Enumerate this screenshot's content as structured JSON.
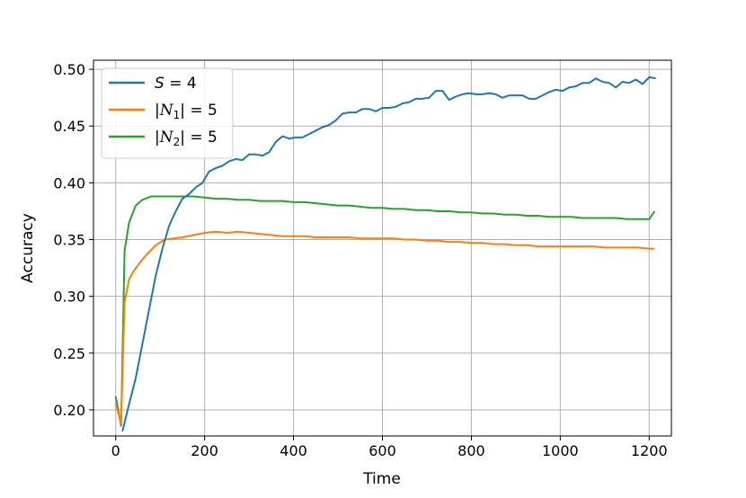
{
  "chart_data": {
    "type": "line",
    "xlabel": "Time",
    "ylabel": "Accuracy",
    "xlim": [
      -50,
      1250
    ],
    "ylim": [
      0.177,
      0.508
    ],
    "grid": true,
    "legend_position": "upper-left",
    "xticks": [
      0,
      200,
      400,
      600,
      800,
      1000,
      1200
    ],
    "xtick_labels": [
      "0",
      "200",
      "400",
      "600",
      "800",
      "1000",
      "1200"
    ],
    "yticks": [
      0.2,
      0.25,
      0.3,
      0.35,
      0.4,
      0.45,
      0.5
    ],
    "ytick_labels": [
      "0.20",
      "0.25",
      "0.30",
      "0.35",
      "0.40",
      "0.45",
      "0.50"
    ],
    "series": [
      {
        "name": "S = 4",
        "legend_parts": {
          "var": "S",
          "sub": "",
          "rest": " = 4",
          "abs": false
        },
        "color": "#1f77b4",
        "points": [
          [
            15,
            0.181
          ],
          [
            30,
            0.205
          ],
          [
            45,
            0.228
          ],
          [
            60,
            0.258
          ],
          [
            75,
            0.288
          ],
          [
            90,
            0.318
          ],
          [
            105,
            0.342
          ],
          [
            120,
            0.362
          ],
          [
            135,
            0.375
          ],
          [
            150,
            0.386
          ],
          [
            165,
            0.39
          ],
          [
            180,
            0.396
          ],
          [
            195,
            0.4
          ],
          [
            210,
            0.41
          ],
          [
            225,
            0.413
          ],
          [
            240,
            0.415
          ],
          [
            255,
            0.419
          ],
          [
            270,
            0.421
          ],
          [
            285,
            0.42
          ],
          [
            300,
            0.425
          ],
          [
            315,
            0.425
          ],
          [
            330,
            0.424
          ],
          [
            345,
            0.427
          ],
          [
            360,
            0.436
          ],
          [
            375,
            0.441
          ],
          [
            390,
            0.439
          ],
          [
            405,
            0.44
          ],
          [
            420,
            0.44
          ],
          [
            435,
            0.443
          ],
          [
            450,
            0.446
          ],
          [
            465,
            0.449
          ],
          [
            480,
            0.451
          ],
          [
            495,
            0.455
          ],
          [
            510,
            0.461
          ],
          [
            525,
            0.462
          ],
          [
            540,
            0.462
          ],
          [
            555,
            0.465
          ],
          [
            570,
            0.465
          ],
          [
            585,
            0.463
          ],
          [
            600,
            0.466
          ],
          [
            615,
            0.466
          ],
          [
            630,
            0.467
          ],
          [
            645,
            0.47
          ],
          [
            660,
            0.471
          ],
          [
            675,
            0.474
          ],
          [
            690,
            0.474
          ],
          [
            705,
            0.475
          ],
          [
            720,
            0.481
          ],
          [
            735,
            0.481
          ],
          [
            750,
            0.473
          ],
          [
            765,
            0.476
          ],
          [
            780,
            0.478
          ],
          [
            795,
            0.479
          ],
          [
            810,
            0.478
          ],
          [
            825,
            0.478
          ],
          [
            840,
            0.479
          ],
          [
            855,
            0.478
          ],
          [
            870,
            0.475
          ],
          [
            885,
            0.477
          ],
          [
            900,
            0.477
          ],
          [
            915,
            0.477
          ],
          [
            930,
            0.474
          ],
          [
            945,
            0.474
          ],
          [
            960,
            0.477
          ],
          [
            975,
            0.48
          ],
          [
            990,
            0.482
          ],
          [
            1005,
            0.481
          ],
          [
            1020,
            0.484
          ],
          [
            1035,
            0.485
          ],
          [
            1050,
            0.488
          ],
          [
            1065,
            0.488
          ],
          [
            1080,
            0.492
          ],
          [
            1095,
            0.489
          ],
          [
            1110,
            0.488
          ],
          [
            1125,
            0.484
          ],
          [
            1140,
            0.489
          ],
          [
            1155,
            0.488
          ],
          [
            1170,
            0.491
          ],
          [
            1185,
            0.487
          ],
          [
            1200,
            0.493
          ],
          [
            1215,
            0.492
          ]
        ]
      },
      {
        "name": "|N1| = 5",
        "legend_parts": {
          "var": "N",
          "sub": "1",
          "rest": " = 5",
          "abs": true
        },
        "color": "#ff7f0e",
        "points": [
          [
            0,
            0.205
          ],
          [
            12,
            0.188
          ],
          [
            20,
            0.295
          ],
          [
            30,
            0.315
          ],
          [
            40,
            0.322
          ],
          [
            55,
            0.33
          ],
          [
            70,
            0.337
          ],
          [
            90,
            0.345
          ],
          [
            110,
            0.35
          ],
          [
            130,
            0.351
          ],
          [
            150,
            0.352
          ],
          [
            175,
            0.354
          ],
          [
            200,
            0.356
          ],
          [
            225,
            0.357
          ],
          [
            250,
            0.356
          ],
          [
            275,
            0.357
          ],
          [
            300,
            0.356
          ],
          [
            325,
            0.355
          ],
          [
            350,
            0.354
          ],
          [
            375,
            0.353
          ],
          [
            400,
            0.353
          ],
          [
            425,
            0.353
          ],
          [
            450,
            0.352
          ],
          [
            475,
            0.352
          ],
          [
            500,
            0.352
          ],
          [
            525,
            0.352
          ],
          [
            550,
            0.351
          ],
          [
            575,
            0.351
          ],
          [
            600,
            0.351
          ],
          [
            625,
            0.351
          ],
          [
            650,
            0.35
          ],
          [
            675,
            0.35
          ],
          [
            700,
            0.349
          ],
          [
            725,
            0.349
          ],
          [
            750,
            0.348
          ],
          [
            775,
            0.348
          ],
          [
            800,
            0.347
          ],
          [
            825,
            0.347
          ],
          [
            850,
            0.346
          ],
          [
            875,
            0.346
          ],
          [
            900,
            0.345
          ],
          [
            925,
            0.345
          ],
          [
            950,
            0.344
          ],
          [
            975,
            0.344
          ],
          [
            1000,
            0.344
          ],
          [
            1025,
            0.344
          ],
          [
            1050,
            0.344
          ],
          [
            1075,
            0.344
          ],
          [
            1100,
            0.343
          ],
          [
            1125,
            0.343
          ],
          [
            1150,
            0.343
          ],
          [
            1175,
            0.343
          ],
          [
            1200,
            0.342
          ],
          [
            1212,
            0.342
          ]
        ]
      },
      {
        "name": "|N2| = 5",
        "legend_parts": {
          "var": "N",
          "sub": "2",
          "rest": " = 5",
          "abs": true
        },
        "color": "#2ca02c",
        "points": [
          [
            0,
            0.212
          ],
          [
            12,
            0.186
          ],
          [
            20,
            0.34
          ],
          [
            30,
            0.365
          ],
          [
            45,
            0.38
          ],
          [
            60,
            0.385
          ],
          [
            80,
            0.388
          ],
          [
            100,
            0.388
          ],
          [
            125,
            0.388
          ],
          [
            150,
            0.388
          ],
          [
            175,
            0.388
          ],
          [
            200,
            0.387
          ],
          [
            225,
            0.386
          ],
          [
            250,
            0.386
          ],
          [
            275,
            0.385
          ],
          [
            300,
            0.385
          ],
          [
            325,
            0.384
          ],
          [
            350,
            0.384
          ],
          [
            375,
            0.384
          ],
          [
            400,
            0.383
          ],
          [
            425,
            0.383
          ],
          [
            450,
            0.382
          ],
          [
            475,
            0.381
          ],
          [
            500,
            0.38
          ],
          [
            525,
            0.38
          ],
          [
            550,
            0.379
          ],
          [
            575,
            0.378
          ],
          [
            600,
            0.378
          ],
          [
            625,
            0.377
          ],
          [
            650,
            0.377
          ],
          [
            675,
            0.376
          ],
          [
            700,
            0.376
          ],
          [
            725,
            0.375
          ],
          [
            750,
            0.375
          ],
          [
            775,
            0.374
          ],
          [
            800,
            0.374
          ],
          [
            825,
            0.373
          ],
          [
            850,
            0.373
          ],
          [
            875,
            0.372
          ],
          [
            900,
            0.372
          ],
          [
            925,
            0.371
          ],
          [
            950,
            0.371
          ],
          [
            975,
            0.37
          ],
          [
            1000,
            0.37
          ],
          [
            1025,
            0.37
          ],
          [
            1050,
            0.369
          ],
          [
            1075,
            0.369
          ],
          [
            1100,
            0.369
          ],
          [
            1125,
            0.369
          ],
          [
            1150,
            0.368
          ],
          [
            1175,
            0.368
          ],
          [
            1200,
            0.368
          ],
          [
            1212,
            0.375
          ]
        ]
      }
    ]
  }
}
